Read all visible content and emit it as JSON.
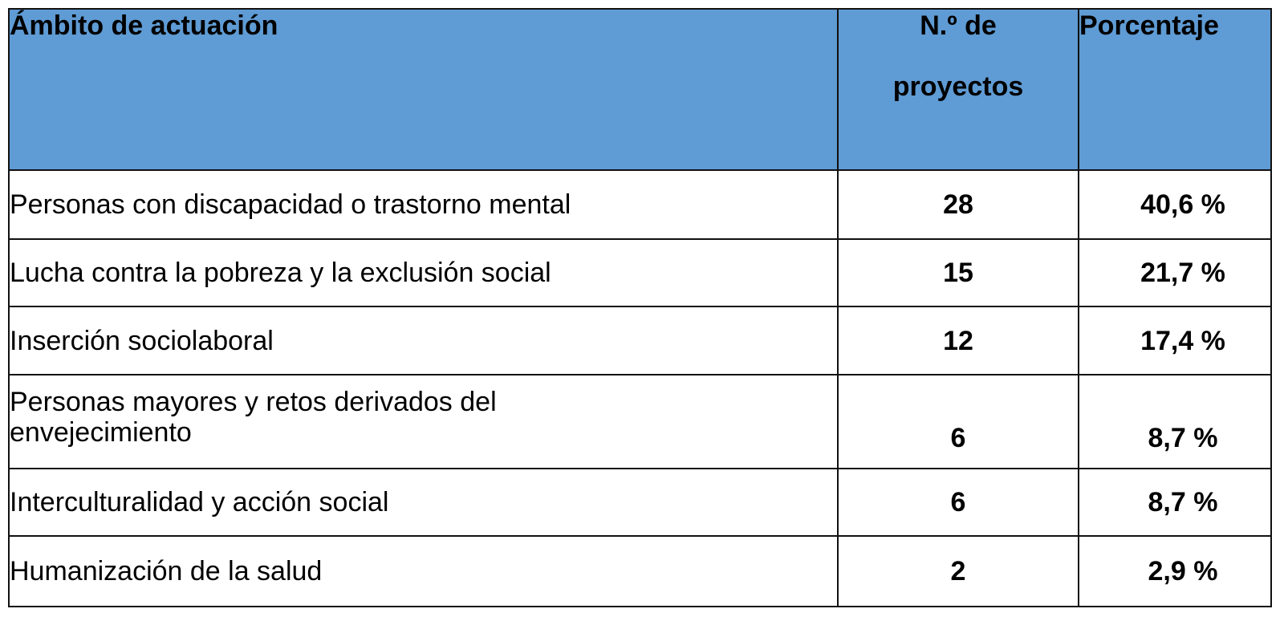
{
  "table": {
    "headers": {
      "ambito": "Ámbito de actuación",
      "num_line1": "N.º de",
      "num_line2": "proyectos",
      "pct": "Porcentaje"
    },
    "header_background": "#5f9bd4",
    "rows": [
      {
        "ambito": "Personas con discapacidad o trastorno mental",
        "num": "28",
        "pct": "40,6 %"
      },
      {
        "ambito": "Lucha contra la pobreza y la exclusión social",
        "num": "15",
        "pct": "21,7 %"
      },
      {
        "ambito": "Inserción sociolaboral",
        "num": "12",
        "pct": "17,4 %"
      },
      {
        "ambito": "Personas mayores y retos derivados del envejecimiento",
        "num": "6",
        "pct": "8,7 %"
      },
      {
        "ambito": "Interculturalidad y acción social",
        "num": "6",
        "pct": "8,7 %"
      },
      {
        "ambito": "Humanización de la salud",
        "num": "2",
        "pct": "2,9 %"
      }
    ]
  }
}
